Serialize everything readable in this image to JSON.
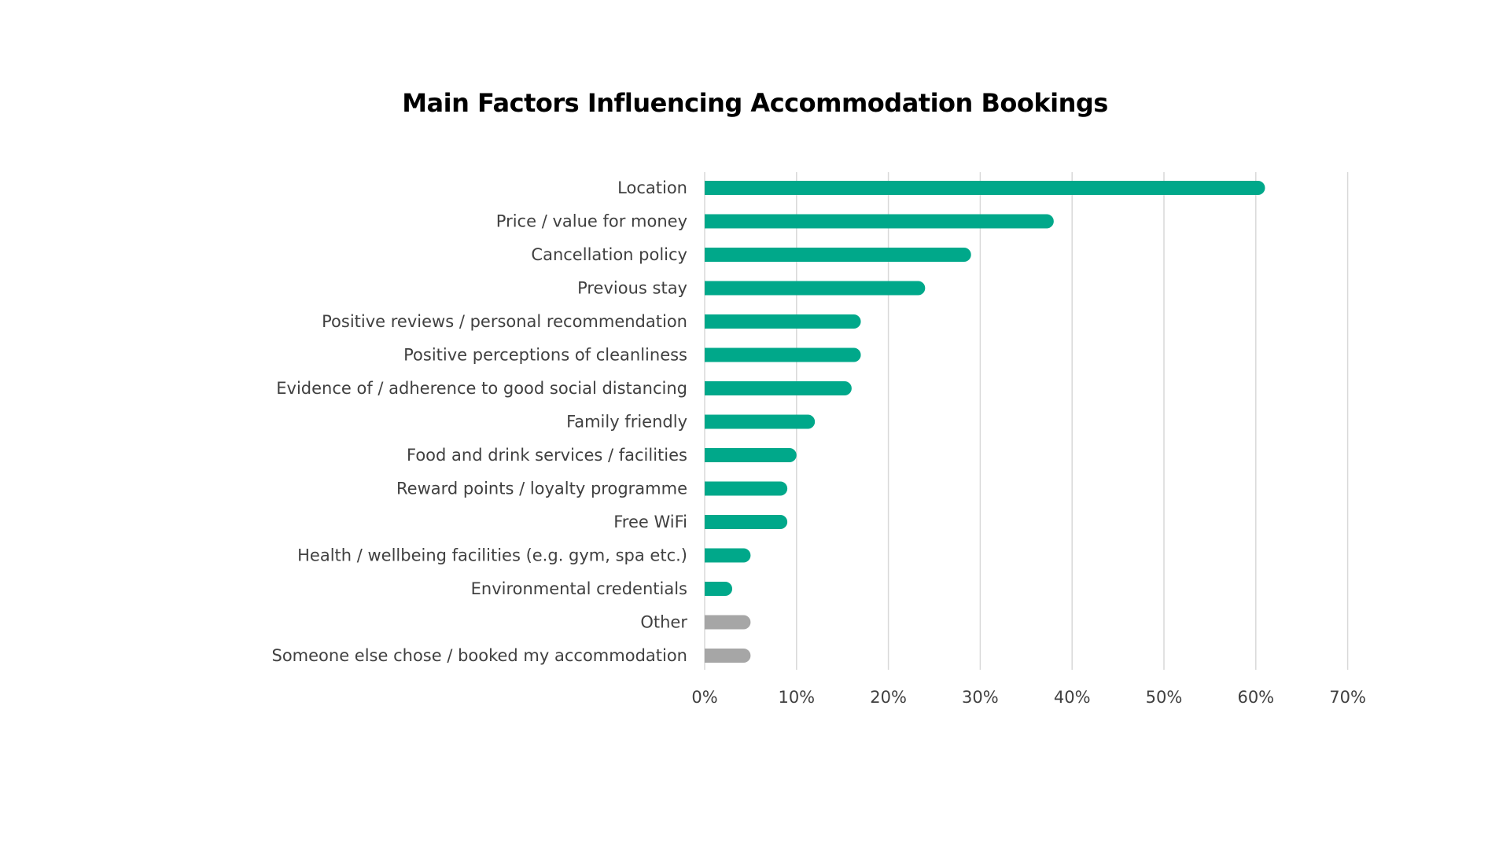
{
  "chart_data": {
    "type": "bar",
    "orientation": "horizontal",
    "title": "Main Factors Influencing Accommodation Bookings",
    "xlabel": "",
    "ylabel": "",
    "xlim": [
      0,
      70
    ],
    "x_ticks": [
      "0%",
      "10%",
      "20%",
      "30%",
      "40%",
      "50%",
      "60%",
      "70%"
    ],
    "grid": "vertical",
    "legend": "none",
    "categories": [
      "Location",
      "Price / value for money",
      "Cancellation policy",
      "Previous stay",
      "Positive reviews / personal recommendation",
      "Positive perceptions of cleanliness",
      "Evidence of / adherence to good social distancing",
      "Family friendly",
      "Food and drink services / facilities",
      "Reward points / loyalty programme",
      "Free WiFi",
      "Health / wellbeing facilities (e.g. gym, spa etc.)",
      "Environmental credentials",
      "Other",
      "Someone else chose / booked my accommodation"
    ],
    "values": [
      61,
      38,
      29,
      24,
      17,
      17,
      16,
      12,
      10,
      9,
      9,
      5,
      3,
      5,
      5
    ],
    "bar_colors": [
      "#00A88A",
      "#00A88A",
      "#00A88A",
      "#00A88A",
      "#00A88A",
      "#00A88A",
      "#00A88A",
      "#00A88A",
      "#00A88A",
      "#00A88A",
      "#00A88A",
      "#00A88A",
      "#00A88A",
      "#A6A6A6",
      "#A6A6A6"
    ],
    "grid_color": "#D9D9D9"
  }
}
